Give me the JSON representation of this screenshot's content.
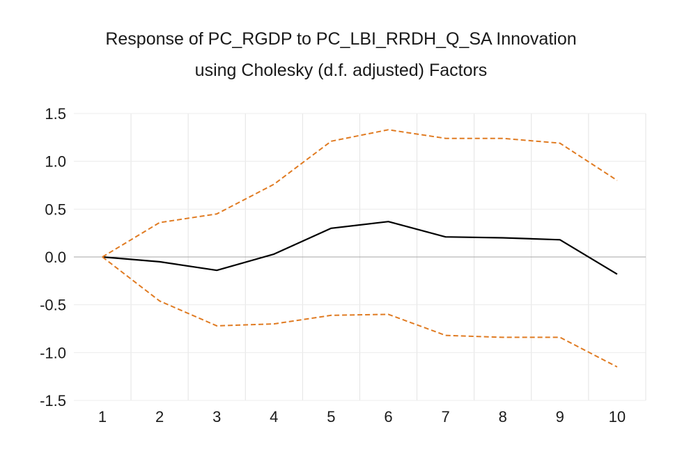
{
  "chart_data": {
    "type": "line",
    "title": "Response of PC_RGDP to PC_LBI_RRDH_Q_SA Innovation",
    "subtitle": "using Cholesky (d.f. adjusted) Factors",
    "x": [
      1,
      2,
      3,
      4,
      5,
      6,
      7,
      8,
      9,
      10
    ],
    "x_tick_labels": [
      "1",
      "2",
      "3",
      "4",
      "5",
      "6",
      "7",
      "8",
      "9",
      "10"
    ],
    "y_tick_labels": [
      "1.5",
      "1.0",
      "0.5",
      "0.0",
      "-0.5",
      "-1.0",
      "-1.5"
    ],
    "y_ticks": [
      1.5,
      1.0,
      0.5,
      0.0,
      -0.5,
      -1.0,
      -1.5
    ],
    "ylim": [
      -1.5,
      1.5
    ],
    "grid": "vertical",
    "legend": "none",
    "series": [
      {
        "key": "response",
        "style": "solid",
        "color": "#000000",
        "values": [
          0.0,
          -0.05,
          -0.14,
          0.03,
          0.3,
          0.37,
          0.21,
          0.2,
          0.18,
          -0.18
        ]
      },
      {
        "key": "upper",
        "style": "dashed",
        "color": "#E07B22",
        "values": [
          0.0,
          0.36,
          0.45,
          0.76,
          1.21,
          1.33,
          1.24,
          1.24,
          1.19,
          0.8
        ]
      },
      {
        "key": "lower",
        "style": "dashed",
        "color": "#E07B22",
        "values": [
          0.0,
          -0.46,
          -0.72,
          -0.7,
          -0.61,
          -0.6,
          -0.82,
          -0.84,
          -0.84,
          -1.15
        ]
      }
    ]
  }
}
